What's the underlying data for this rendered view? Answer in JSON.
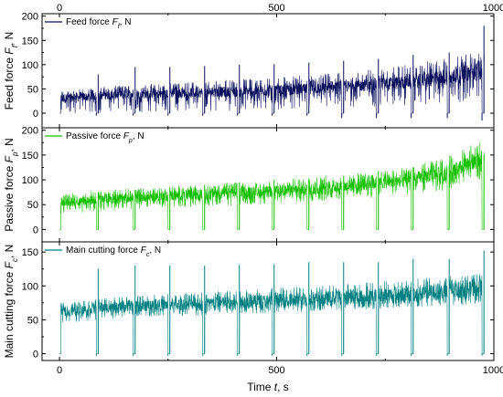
{
  "chart_data": [
    {
      "type": "line",
      "x_label_parts": {
        "name": "Time ",
        "var": "t",
        "unit": ", s"
      },
      "xlim": [
        -40,
        1000
      ],
      "x_ticks": [
        0,
        500,
        1000
      ],
      "y_label_parts": {
        "name": "Feed force ",
        "var": "F",
        "sub": "f",
        "unit": ", N"
      },
      "ylim": [
        -30,
        205
      ],
      "y_ticks": [
        0,
        50,
        100,
        150,
        200
      ],
      "color": "#0a0f5c",
      "legend": {
        "text": "Feed force ",
        "var": "F",
        "sub": "f",
        "unit": ", N",
        "placement": "top-left"
      },
      "series": [
        {
          "name": "Feed force Ff, N",
          "envelope": {
            "t": [
              0,
              100,
              200,
              300,
              400,
              500,
              600,
              700,
              800,
              900,
              975
            ],
            "low": [
              -5,
              0,
              2,
              5,
              5,
              8,
              10,
              12,
              15,
              20,
              30
            ],
            "high": [
              45,
              55,
              60,
              65,
              70,
              75,
              80,
              90,
              100,
              115,
              135
            ],
            "core_low": [
              20,
              28,
              30,
              32,
              33,
              36,
              40,
              45,
              50,
              58,
              70
            ],
            "core_high": [
              40,
              45,
              48,
              52,
              55,
              58,
              62,
              70,
              78,
              90,
              110
            ]
          },
          "gaps": [
            87,
            172,
            252,
            332,
            412,
            492,
            572,
            652,
            732,
            812,
            895,
            975
          ],
          "peaks": [
            80,
            95,
            95,
            97,
            100,
            101,
            104,
            108,
            112,
            120,
            125,
            180
          ],
          "dips": [
            -5,
            -5,
            -5,
            -5,
            -5,
            -5,
            -5,
            -10,
            -10,
            -10,
            -10,
            -15
          ]
        }
      ]
    },
    {
      "type": "line",
      "xlim": [
        -40,
        1000
      ],
      "x_ticks": [
        0,
        500,
        1000
      ],
      "y_label_parts": {
        "name": "Passive force ",
        "var": "F",
        "sub": "p",
        "unit": ", N"
      },
      "ylim": [
        -25,
        205
      ],
      "y_ticks": [
        0,
        50,
        100,
        150,
        200
      ],
      "color": "#16c000",
      "legend": {
        "text": "Passive force ",
        "var": "F",
        "sub": "p",
        "unit": ", N",
        "placement": "top-left"
      },
      "series": [
        {
          "name": "Passive force Fp, N",
          "envelope": {
            "t": [
              0,
              100,
              200,
              300,
              400,
              500,
              600,
              700,
              800,
              900,
              975
            ],
            "low": [
              30,
              38,
              42,
              45,
              48,
              52,
              56,
              62,
              70,
              80,
              100
            ],
            "high": [
              70,
              80,
              85,
              90,
              95,
              100,
              108,
              115,
              125,
              150,
              185
            ],
            "core_low": [
              45,
              52,
              56,
              58,
              62,
              65,
              70,
              78,
              88,
              100,
              125
            ],
            "core_high": [
              62,
              70,
              76,
              80,
              84,
              88,
              95,
              102,
              112,
              130,
              160
            ]
          },
          "gaps": [
            87,
            172,
            252,
            332,
            412,
            492,
            572,
            652,
            732,
            812,
            895,
            975
          ],
          "peaks": [
            75,
            80,
            85,
            90,
            95,
            100,
            103,
            108,
            118,
            125,
            130,
            150
          ],
          "dips": [
            0,
            0,
            0,
            0,
            0,
            0,
            0,
            0,
            0,
            0,
            0,
            0
          ]
        }
      ]
    },
    {
      "type": "line",
      "xlim": [
        -40,
        1000
      ],
      "x_ticks": [
        0,
        500,
        1000
      ],
      "x_label_parts": {
        "name": "Time ",
        "var": "t",
        "unit": ", s"
      },
      "y_label_parts": {
        "name": "Main cutting force ",
        "var": "F",
        "sub": "c",
        "unit": ", N"
      },
      "ylim": [
        -10,
        165
      ],
      "y_ticks": [
        0,
        50,
        100,
        150
      ],
      "color": "#008080",
      "legend": {
        "text": "Main cutting force ",
        "var": "F",
        "sub": "c",
        "unit": ", N",
        "placement": "top-left"
      },
      "series": [
        {
          "name": "Main cutting force Fc, N",
          "envelope": {
            "t": [
              0,
              100,
              200,
              300,
              400,
              500,
              600,
              700,
              800,
              900,
              975
            ],
            "low": [
              45,
              50,
              55,
              55,
              58,
              60,
              62,
              65,
              68,
              70,
              75
            ],
            "high": [
              75,
              82,
              88,
              90,
              95,
              98,
              100,
              105,
              110,
              115,
              118
            ],
            "core_low": [
              55,
              60,
              62,
              65,
              66,
              68,
              70,
              72,
              75,
              80,
              85
            ],
            "core_high": [
              68,
              75,
              80,
              82,
              85,
              88,
              92,
              95,
              100,
              105,
              108
            ]
          },
          "gaps": [
            87,
            172,
            252,
            332,
            412,
            492,
            572,
            652,
            732,
            812,
            895,
            975
          ],
          "peaks": [
            125,
            130,
            130,
            130,
            131,
            132,
            135,
            135,
            135,
            140,
            140,
            152
          ],
          "dips": [
            -3,
            -3,
            -3,
            -3,
            -3,
            -3,
            -3,
            -3,
            -3,
            -3,
            -3,
            -3
          ]
        }
      ]
    }
  ]
}
